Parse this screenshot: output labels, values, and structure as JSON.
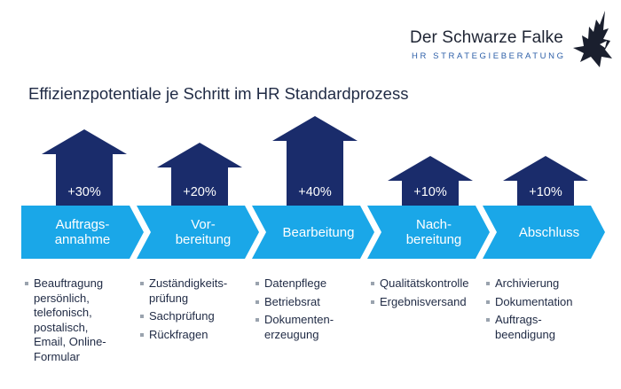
{
  "brand": {
    "name": "Der Schwarze Falke",
    "subtitle": "HR STRATEGIEBERATUNG",
    "logo_icon": "falcon-icon"
  },
  "title": "Effizienzpotentiale je Schritt im HR Standardprozess",
  "colors": {
    "chevron": "#1aa7e8",
    "arrow": "#1a2c6b",
    "bullet": "#9aa3ae"
  },
  "steps": [
    {
      "label_lines": [
        "Auftrags-",
        "annahme"
      ],
      "potential": "+30%",
      "potential_value": 30,
      "details": [
        "Beauftragung persönlich, telefonisch, postalisch, Email, Online-Formular"
      ]
    },
    {
      "label_lines": [
        "Vor-",
        "bereitung"
      ],
      "potential": "+20%",
      "potential_value": 20,
      "details": [
        "Zuständigkeits-prüfung",
        "Sachprüfung",
        "Rückfragen"
      ]
    },
    {
      "label_lines": [
        "Bearbeitung"
      ],
      "potential": "+40%",
      "potential_value": 40,
      "details": [
        "Datenpflege",
        "Betriebsrat",
        "Dokumenten-erzeugung"
      ]
    },
    {
      "label_lines": [
        "Nach-",
        "bereitung"
      ],
      "potential": "+10%",
      "potential_value": 10,
      "details": [
        "Qualitätskontrolle",
        "Ergebnisversand"
      ]
    },
    {
      "label_lines": [
        "Abschluss"
      ],
      "potential": "+10%",
      "potential_value": 10,
      "details": [
        "Archivierung",
        "Dokumentation",
        "Auftrags-beendigung"
      ]
    }
  ]
}
